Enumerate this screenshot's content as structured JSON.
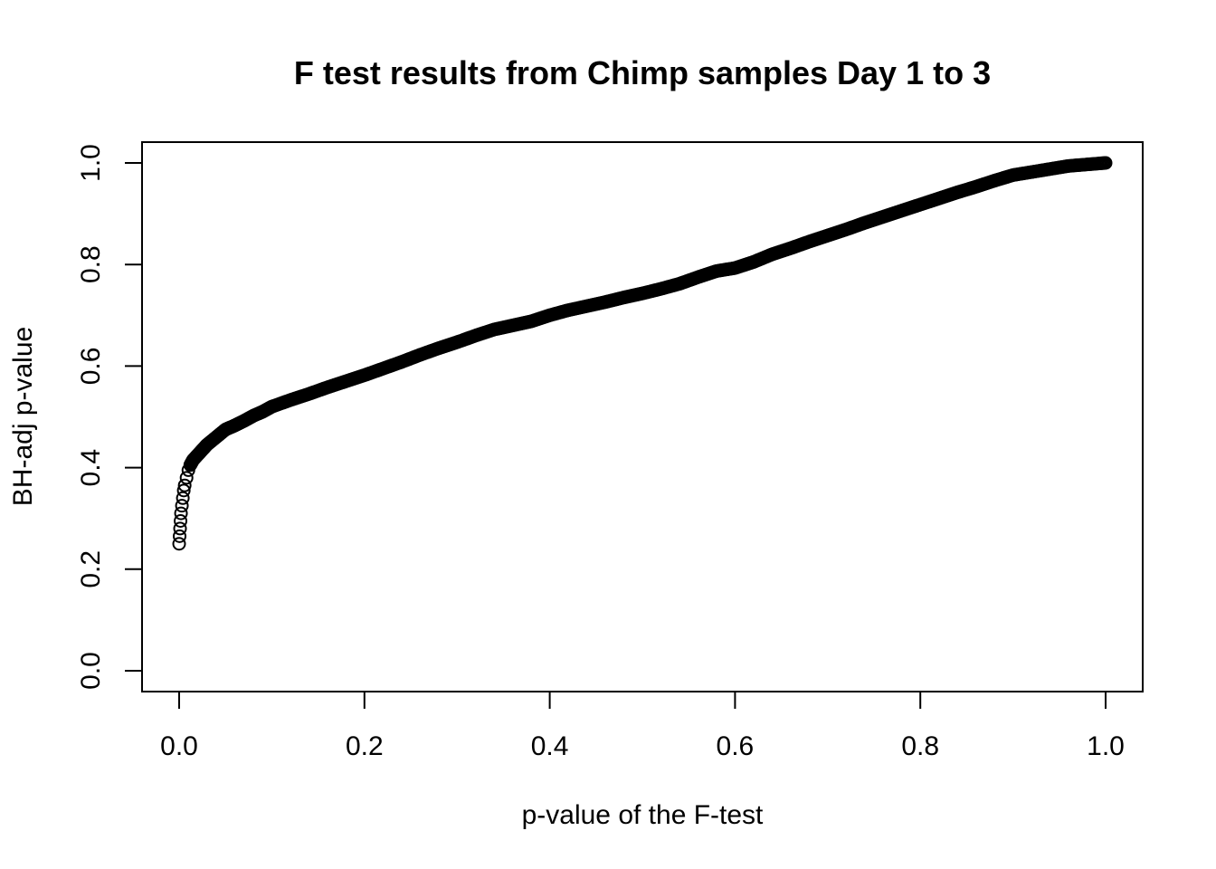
{
  "chart_data": {
    "type": "scatter",
    "title": "F test results from Chimp samples Day 1 to 3",
    "xlabel": "p-value of the F-test",
    "ylabel": "BH-adj p-value",
    "xlim": [
      0.0,
      1.0
    ],
    "ylim": [
      0.0,
      1.0
    ],
    "x_ticks": [
      "0.0",
      "0.2",
      "0.4",
      "0.6",
      "0.8",
      "1.0"
    ],
    "y_ticks": [
      "0.0",
      "0.2",
      "0.4",
      "0.6",
      "0.8",
      "1.0"
    ],
    "grid": false,
    "legend": "none",
    "marker": "open-circle",
    "color": "#000000",
    "series": [
      {
        "x": [
          0.0,
          0.0005,
          0.001,
          0.0015,
          0.002,
          0.003,
          0.004,
          0.005,
          0.006,
          0.008,
          0.01,
          0.012,
          0.015,
          0.02,
          0.025,
          0.03,
          0.04,
          0.05,
          0.06,
          0.07,
          0.08,
          0.09,
          0.1,
          0.12,
          0.14,
          0.16,
          0.18,
          0.2,
          0.22,
          0.24,
          0.26,
          0.28,
          0.3,
          0.32,
          0.34,
          0.36,
          0.38,
          0.4,
          0.42,
          0.44,
          0.46,
          0.48,
          0.5,
          0.52,
          0.54,
          0.56,
          0.58,
          0.6,
          0.62,
          0.64,
          0.66,
          0.68,
          0.7,
          0.72,
          0.74,
          0.76,
          0.78,
          0.8,
          0.82,
          0.84,
          0.86,
          0.88,
          0.9,
          0.92,
          0.94,
          0.96,
          0.98,
          1.0
        ],
        "y": [
          0.25,
          0.265,
          0.28,
          0.295,
          0.31,
          0.325,
          0.34,
          0.355,
          0.365,
          0.38,
          0.395,
          0.405,
          0.415,
          0.425,
          0.435,
          0.445,
          0.46,
          0.475,
          0.483,
          0.492,
          0.502,
          0.51,
          0.52,
          0.533,
          0.545,
          0.558,
          0.57,
          0.582,
          0.595,
          0.608,
          0.622,
          0.635,
          0.647,
          0.66,
          0.672,
          0.68,
          0.688,
          0.7,
          0.71,
          0.718,
          0.726,
          0.735,
          0.743,
          0.752,
          0.762,
          0.775,
          0.787,
          0.793,
          0.805,
          0.82,
          0.832,
          0.845,
          0.857,
          0.869,
          0.882,
          0.894,
          0.906,
          0.918,
          0.93,
          0.942,
          0.953,
          0.965,
          0.976,
          0.982,
          0.988,
          0.994,
          0.997,
          1.0
        ]
      }
    ]
  }
}
